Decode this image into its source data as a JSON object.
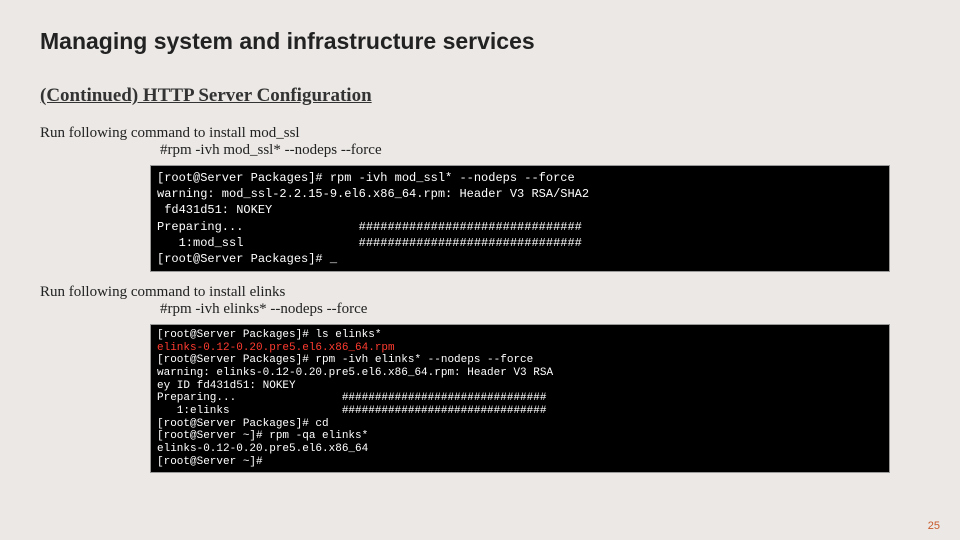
{
  "title": "Managing system and infrastructure services",
  "subtitle": "(Continued) HTTP Server Configuration",
  "block1": {
    "desc": "Run following command to install mod_ssl",
    "cmd": "#rpm -ivh mod_ssl* --nodeps --force",
    "terminal_lines": [
      {
        "text": "[root@Server Packages]# rpm -ivh mod_ssl* --nodeps --force",
        "class": ""
      },
      {
        "text": "warning: mod_ssl-2.2.15-9.el6.x86_64.rpm: Header V3 RSA/SHA2",
        "class": ""
      },
      {
        "text": " fd431d51: NOKEY",
        "class": ""
      },
      {
        "text": "Preparing...                ###############################",
        "class": ""
      },
      {
        "text": "   1:mod_ssl                ###############################",
        "class": ""
      },
      {
        "text": "[root@Server Packages]# _",
        "class": ""
      }
    ]
  },
  "block2": {
    "desc": "Run following command to install elinks",
    "cmd": "#rpm -ivh elinks* --nodeps --force",
    "terminal_lines": [
      {
        "text": "[root@Server Packages]# ls elinks*",
        "class": ""
      },
      {
        "text": "elinks-0.12-0.20.pre5.el6.x86_64.rpm",
        "class": "red"
      },
      {
        "text": "[root@Server Packages]# rpm -ivh elinks* --nodeps --force",
        "class": ""
      },
      {
        "text": "warning: elinks-0.12-0.20.pre5.el6.x86_64.rpm: Header V3 RSA",
        "class": ""
      },
      {
        "text": "ey ID fd431d51: NOKEY",
        "class": ""
      },
      {
        "text": "Preparing...                ###############################",
        "class": ""
      },
      {
        "text": "   1:elinks                 ###############################",
        "class": ""
      },
      {
        "text": "[root@Server Packages]# cd",
        "class": ""
      },
      {
        "text": "[root@Server ~]# rpm -qa elinks*",
        "class": ""
      },
      {
        "text": "elinks-0.12-0.20.pre5.el6.x86_64",
        "class": ""
      },
      {
        "text": "[root@Server ~]# ",
        "class": ""
      }
    ]
  },
  "page_number": "25"
}
